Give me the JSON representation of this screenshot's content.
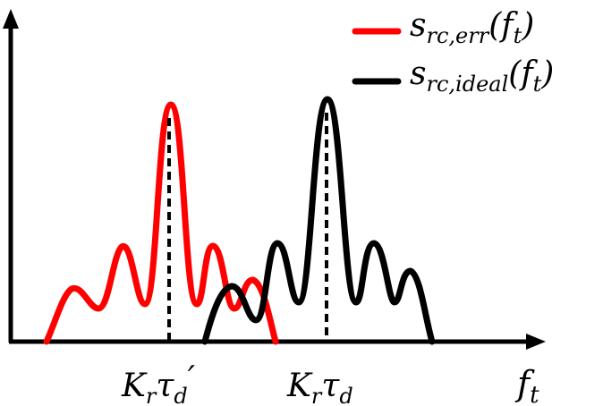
{
  "diagram": {
    "type": "spectrum-illustration",
    "x_axis_label": {
      "base": "f",
      "sub": "t"
    },
    "markers": [
      {
        "id": "err-peak",
        "base": "K",
        "sub1": "r",
        "greek": "τ",
        "sub2": "d",
        "prime": "′"
      },
      {
        "id": "ideal-peak",
        "base": "K",
        "sub1": "r",
        "greek": "τ",
        "sub2": "d",
        "prime": ""
      }
    ],
    "legend": [
      {
        "id": "err",
        "color": "#ff0000",
        "base": "s",
        "sub": "rc,err",
        "arg_open": "(",
        "arg_base": "f",
        "arg_sub": "t",
        "arg_close": ")"
      },
      {
        "id": "ideal",
        "color": "#000000",
        "base": "s",
        "sub": "rc,ideal",
        "arg_open": "(",
        "arg_base": "f",
        "arg_sub": "t",
        "arg_close": ")"
      }
    ],
    "curves": [
      {
        "id": "err",
        "color": "#ff0000",
        "lobes": [
          "side",
          "side",
          "main",
          "side",
          "side"
        ]
      },
      {
        "id": "ideal",
        "color": "#000000",
        "lobes": [
          "side",
          "side",
          "main",
          "side",
          "side"
        ]
      }
    ]
  }
}
